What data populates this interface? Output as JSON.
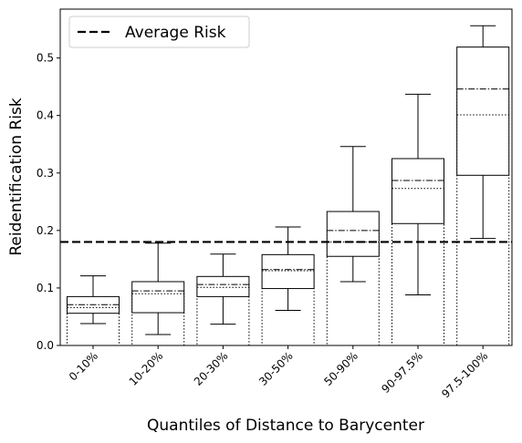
{
  "chart_data": {
    "type": "box",
    "xlabel": "Quantiles of Distance to Barycenter",
    "ylabel": "Reidentification Risk",
    "ylim": [
      0.0,
      0.585
    ],
    "yticks": [
      "0.0",
      "0.1",
      "0.2",
      "0.3",
      "0.4",
      "0.5"
    ],
    "grid": false,
    "legend": {
      "placement": "top-left",
      "entries": [
        {
          "label": "Average Risk",
          "style": "dashed",
          "color": "#000000"
        }
      ]
    },
    "average_risk": 0.18,
    "categories": [
      "0-10%",
      "10-20%",
      "20-30%",
      "30-50%",
      "50-90%",
      "90-97.5%",
      "97.5-100%"
    ],
    "boxes": [
      {
        "whisker_low": 0.038,
        "q1": 0.056,
        "median": 0.066,
        "mean": 0.071,
        "q3": 0.085,
        "whisker_high": 0.121
      },
      {
        "whisker_low": 0.019,
        "q1": 0.057,
        "median": 0.09,
        "mean": 0.095,
        "q3": 0.111,
        "whisker_high": 0.178
      },
      {
        "whisker_low": 0.037,
        "q1": 0.085,
        "median": 0.101,
        "mean": 0.106,
        "q3": 0.12,
        "whisker_high": 0.159
      },
      {
        "whisker_low": 0.061,
        "q1": 0.099,
        "median": 0.13,
        "mean": 0.132,
        "q3": 0.158,
        "whisker_high": 0.206
      },
      {
        "whisker_low": 0.111,
        "q1": 0.155,
        "median": 0.18,
        "mean": 0.2,
        "q3": 0.233,
        "whisker_high": 0.346
      },
      {
        "whisker_low": 0.088,
        "q1": 0.212,
        "median": 0.273,
        "mean": 0.287,
        "q3": 0.325,
        "whisker_high": 0.437
      },
      {
        "whisker_low": 0.186,
        "q1": 0.296,
        "median": 0.401,
        "mean": 0.446,
        "q3": 0.519,
        "whisker_high": 0.556
      }
    ]
  }
}
